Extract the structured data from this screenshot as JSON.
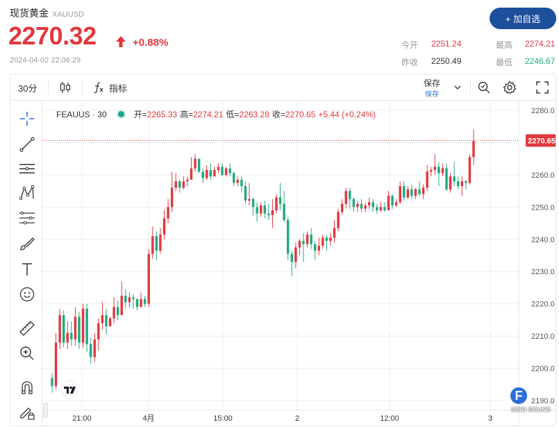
{
  "header": {
    "title": "现货黄金",
    "symbol": "XAUUSD",
    "price": "2270.32",
    "change": "+0.88%",
    "timestamp": "2024-04-02 22:06:29",
    "add_button": "+ 加自选"
  },
  "stats": {
    "open_label": "今开",
    "open_value": "2251.24",
    "prev_close_label": "昨收",
    "prev_close_value": "2250.49",
    "high_label": "最高",
    "high_value": "2274.21",
    "low_label": "最低",
    "low_value": "2246.67"
  },
  "toolbar": {
    "interval": "30分",
    "indicators": "指标",
    "save_label": "保存",
    "save_sub": "保存"
  },
  "legend": {
    "symbol": "FEAUUS · 30",
    "open_k": "开=",
    "open_v": "2265.33",
    "high_k": "高=",
    "high_v": "2274.21",
    "low_k": "低=",
    "low_v": "2263.28",
    "close_k": "收=",
    "close_v": "2270.65",
    "change_v": "+5.44 (+0.24%)"
  },
  "colors": {
    "up": "#e0383e",
    "down": "#21a883",
    "accent": "#1c4f9c"
  },
  "badge_letter": "F",
  "watermark": "SINO SOUND",
  "chart_data": {
    "type": "candlestick",
    "current_price_label": "2270.65",
    "ylim": [
      2187,
      2283
    ],
    "y_ticks": [
      2280.0,
      2270.0,
      2260.0,
      2250.0,
      2240.0,
      2230.0,
      2220.0,
      2210.0,
      2200.0,
      2190.0
    ],
    "x_ticks": [
      "21:00",
      "4月",
      "15:00",
      "2",
      "12:00",
      "3"
    ],
    "candles": [
      [
        2197.0,
        2194.5,
        2192.5,
        2198.5
      ],
      [
        2194.5,
        2208.0,
        2193.5,
        2211.0
      ],
      [
        2208.0,
        2216.5,
        2206.0,
        2218.5
      ],
      [
        2216.5,
        2208.0,
        2206.5,
        2218.0
      ],
      [
        2208.0,
        2211.0,
        2206.0,
        2214.5
      ],
      [
        2211.0,
        2209.0,
        2207.0,
        2214.5
      ],
      [
        2209.0,
        2216.0,
        2207.0,
        2219.0
      ],
      [
        2216.0,
        2208.0,
        2206.0,
        2217.5
      ],
      [
        2208.0,
        2218.5,
        2206.5,
        2220.0
      ],
      [
        2218.5,
        2207.5,
        2205.0,
        2220.0
      ],
      [
        2207.5,
        2203.5,
        2201.5,
        2209.5
      ],
      [
        2203.5,
        2209.0,
        2202.0,
        2211.0
      ],
      [
        2209.0,
        2214.0,
        2205.5,
        2215.5
      ],
      [
        2214.0,
        2216.5,
        2212.0,
        2220.5
      ],
      [
        2216.5,
        2213.0,
        2210.5,
        2218.5
      ],
      [
        2213.0,
        2215.5,
        2213.0,
        2216.0
      ],
      [
        2215.5,
        2219.0,
        2214.0,
        2222.0
      ],
      [
        2219.0,
        2216.5,
        2215.0,
        2221.0
      ],
      [
        2216.5,
        2222.5,
        2216.5,
        2227.0
      ],
      [
        2222.5,
        2220.5,
        2218.5,
        2224.5
      ],
      [
        2220.5,
        2222.0,
        2219.0,
        2223.5
      ],
      [
        2222.0,
        2221.5,
        2218.5,
        2223.0
      ],
      [
        2221.5,
        2219.0,
        2218.0,
        2221.5
      ],
      [
        2219.0,
        2221.5,
        2219.0,
        2223.5
      ],
      [
        2221.5,
        2220.0,
        2219.0,
        2222.5
      ],
      [
        2220.0,
        2235.5,
        2219.0,
        2237.0
      ],
      [
        2235.5,
        2241.0,
        2234.0,
        2244.0
      ],
      [
        2241.0,
        2236.5,
        2233.5,
        2242.5
      ],
      [
        2236.5,
        2241.5,
        2235.5,
        2243.5
      ],
      [
        2241.5,
        2246.5,
        2240.0,
        2249.0
      ],
      [
        2246.5,
        2250.0,
        2245.0,
        2252.5
      ],
      [
        2250.0,
        2256.0,
        2248.5,
        2261.0
      ],
      [
        2256.0,
        2258.0,
        2255.0,
        2260.5
      ],
      [
        2258.0,
        2256.0,
        2254.5,
        2258.5
      ],
      [
        2256.0,
        2258.0,
        2255.5,
        2259.5
      ],
      [
        2258.0,
        2258.5,
        2256.5,
        2259.5
      ],
      [
        2258.5,
        2262.0,
        2258.5,
        2265.5
      ],
      [
        2262.0,
        2265.0,
        2261.0,
        2266.5
      ],
      [
        2265.0,
        2261.0,
        2260.5,
        2265.0
      ],
      [
        2261.0,
        2259.0,
        2257.5,
        2262.0
      ],
      [
        2259.0,
        2261.5,
        2258.5,
        2263.0
      ],
      [
        2261.5,
        2259.5,
        2258.5,
        2263.5
      ],
      [
        2259.5,
        2261.5,
        2259.5,
        2262.5
      ],
      [
        2261.5,
        2262.5,
        2260.5,
        2263.5
      ],
      [
        2262.5,
        2260.0,
        2259.5,
        2263.5
      ],
      [
        2260.0,
        2262.0,
        2259.5,
        2262.5
      ],
      [
        2262.0,
        2260.5,
        2259.5,
        2263.5
      ],
      [
        2260.5,
        2257.5,
        2256.5,
        2261.0
      ],
      [
        2257.5,
        2258.5,
        2256.5,
        2259.5
      ],
      [
        2258.5,
        2256.5,
        2254.5,
        2259.5
      ],
      [
        2256.5,
        2252.0,
        2251.0,
        2258.0
      ],
      [
        2252.0,
        2252.5,
        2250.5,
        2257.5
      ],
      [
        2252.5,
        2250.0,
        2247.5,
        2253.0
      ],
      [
        2250.0,
        2248.0,
        2245.5,
        2251.5
      ],
      [
        2248.0,
        2250.5,
        2247.0,
        2251.5
      ],
      [
        2250.5,
        2248.0,
        2246.5,
        2252.0
      ],
      [
        2248.0,
        2247.5,
        2246.0,
        2251.0
      ],
      [
        2247.5,
        2249.0,
        2243.5,
        2252.5
      ],
      [
        2249.0,
        2253.0,
        2248.0,
        2254.0
      ],
      [
        2253.0,
        2251.0,
        2249.0,
        2257.5
      ],
      [
        2251.0,
        2246.0,
        2245.5,
        2255.0
      ],
      [
        2246.0,
        2235.5,
        2233.5,
        2247.0
      ],
      [
        2235.5,
        2233.0,
        2228.5,
        2236.5
      ],
      [
        2233.0,
        2237.5,
        2231.0,
        2239.0
      ],
      [
        2237.5,
        2239.5,
        2235.0,
        2240.0
      ],
      [
        2239.5,
        2238.5,
        2233.0,
        2242.0
      ],
      [
        2238.5,
        2241.5,
        2237.5,
        2242.5
      ],
      [
        2241.5,
        2238.5,
        2237.0,
        2243.5
      ],
      [
        2238.5,
        2236.5,
        2233.5,
        2239.5
      ],
      [
        2236.5,
        2238.0,
        2235.0,
        2240.5
      ],
      [
        2238.0,
        2240.5,
        2237.0,
        2241.5
      ],
      [
        2240.5,
        2239.5,
        2236.5,
        2241.5
      ],
      [
        2239.5,
        2240.5,
        2238.0,
        2242.0
      ],
      [
        2240.5,
        2243.5,
        2239.0,
        2246.0
      ],
      [
        2243.5,
        2248.5,
        2242.5,
        2249.5
      ],
      [
        2248.5,
        2251.0,
        2247.5,
        2252.5
      ],
      [
        2251.0,
        2255.0,
        2249.5,
        2256.0
      ],
      [
        2255.0,
        2252.5,
        2249.5,
        2256.0
      ],
      [
        2252.5,
        2250.0,
        2248.5,
        2253.0
      ],
      [
        2250.0,
        2251.0,
        2248.5,
        2252.0
      ],
      [
        2251.0,
        2249.5,
        2248.5,
        2252.5
      ],
      [
        2249.5,
        2250.5,
        2248.5,
        2251.5
      ],
      [
        2250.5,
        2251.5,
        2249.5,
        2253.0
      ],
      [
        2251.5,
        2250.0,
        2248.5,
        2252.5
      ],
      [
        2250.0,
        2249.0,
        2248.0,
        2251.0
      ],
      [
        2249.0,
        2250.0,
        2248.5,
        2251.5
      ],
      [
        2250.0,
        2249.0,
        2248.5,
        2251.5
      ],
      [
        2249.0,
        2253.5,
        2249.0,
        2255.0
      ],
      [
        2253.5,
        2250.5,
        2249.5,
        2254.0
      ],
      [
        2250.5,
        2251.5,
        2250.0,
        2252.5
      ],
      [
        2251.5,
        2256.5,
        2251.0,
        2258.0
      ],
      [
        2256.5,
        2253.0,
        2252.0,
        2258.0
      ],
      [
        2253.0,
        2255.5,
        2252.5,
        2256.5
      ],
      [
        2255.5,
        2253.5,
        2252.5,
        2257.0
      ],
      [
        2253.5,
        2255.5,
        2252.5,
        2256.0
      ],
      [
        2255.5,
        2254.0,
        2253.5,
        2258.0
      ],
      [
        2254.0,
        2256.0,
        2252.5,
        2257.0
      ],
      [
        2256.0,
        2261.0,
        2255.0,
        2263.0
      ],
      [
        2261.0,
        2261.5,
        2259.5,
        2262.5
      ],
      [
        2261.5,
        2262.5,
        2260.0,
        2266.5
      ],
      [
        2262.5,
        2260.5,
        2256.5,
        2264.0
      ],
      [
        2260.5,
        2262.0,
        2259.5,
        2263.5
      ],
      [
        2262.0,
        2255.5,
        2255.0,
        2263.5
      ],
      [
        2255.5,
        2259.5,
        2254.5,
        2260.5
      ],
      [
        2259.5,
        2258.0,
        2256.5,
        2264.0
      ],
      [
        2258.0,
        2256.5,
        2255.5,
        2259.5
      ],
      [
        2256.5,
        2258.0,
        2253.5,
        2259.5
      ],
      [
        2258.0,
        2257.5,
        2255.5,
        2258.5
      ],
      [
        2257.5,
        2265.5,
        2257.0,
        2266.5
      ],
      [
        2265.5,
        2270.5,
        2263.0,
        2274.0
      ]
    ]
  }
}
